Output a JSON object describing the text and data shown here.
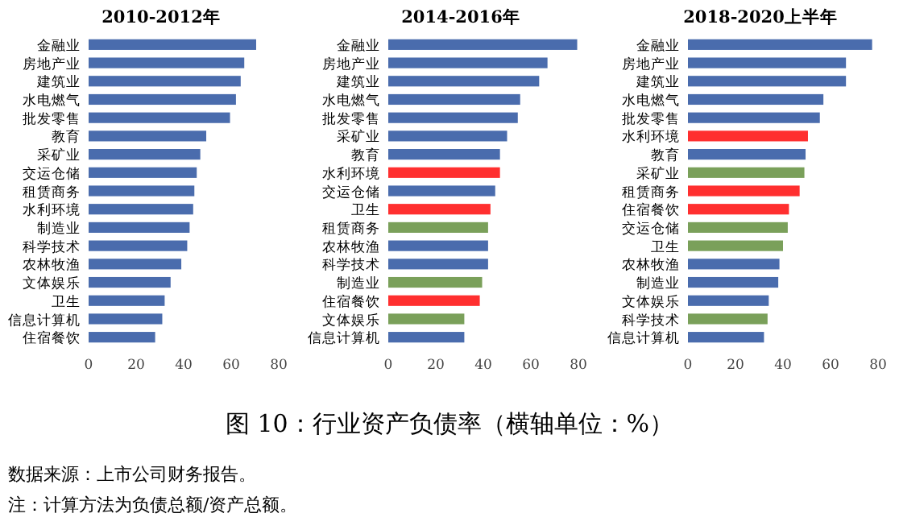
{
  "chart_data": [
    {
      "type": "bar",
      "orientation": "horizontal",
      "title": "2010-2012年",
      "categories": [
        "金融业",
        "房地产业",
        "建筑业",
        "水电燃气",
        "批发零售",
        "教育",
        "采矿业",
        "交运仓储",
        "租赁商务",
        "水利环境",
        "制造业",
        "科学技术",
        "农林牧渔",
        "文体娱乐",
        "卫生",
        "信息计算机",
        "住宿餐饮"
      ],
      "values": [
        70.5,
        65.5,
        64,
        62,
        59.5,
        49.5,
        47,
        45.5,
        44.5,
        44,
        42.5,
        41.5,
        39,
        34.5,
        32,
        31,
        28
      ],
      "colors": [
        "#4a6cad",
        "#4a6cad",
        "#4a6cad",
        "#4a6cad",
        "#4a6cad",
        "#4a6cad",
        "#4a6cad",
        "#4a6cad",
        "#4a6cad",
        "#4a6cad",
        "#4a6cad",
        "#4a6cad",
        "#4a6cad",
        "#4a6cad",
        "#4a6cad",
        "#4a6cad",
        "#4a6cad"
      ],
      "xlim": [
        0,
        80
      ],
      "xticks": [
        0,
        20,
        40,
        60,
        80
      ],
      "grid": false,
      "annotations": [
        "图 10：行业资产负债率（横轴单位：%）",
        "数据来源：上市公司财务报告。",
        "注：计算方法为负债总额/资产总额。"
      ]
    },
    {
      "type": "bar",
      "orientation": "horizontal",
      "title": "2014-2016年",
      "categories": [
        "金融业",
        "房地产业",
        "建筑业",
        "水电燃气",
        "批发零售",
        "采矿业",
        "教育",
        "水利环境",
        "交运仓储",
        "卫生",
        "租赁商务",
        "农林牧渔",
        "科学技术",
        "制造业",
        "住宿餐饮",
        "文体娱乐",
        "信息计算机"
      ],
      "values": [
        79.5,
        67,
        63.5,
        55.5,
        54.5,
        50,
        47,
        47,
        45,
        43,
        42,
        42,
        42,
        39.5,
        38.5,
        32,
        32
      ],
      "colors": [
        "#4a6cad",
        "#4a6cad",
        "#4a6cad",
        "#4a6cad",
        "#4a6cad",
        "#4a6cad",
        "#4a6cad",
        "#ff2f2f",
        "#4a6cad",
        "#ff2f2f",
        "#7aa05a",
        "#4a6cad",
        "#4a6cad",
        "#7aa05a",
        "#ff2f2f",
        "#7aa05a",
        "#4a6cad"
      ],
      "xlim": [
        0,
        80
      ],
      "xticks": [
        0,
        20,
        40,
        60,
        80
      ],
      "grid": false
    },
    {
      "type": "bar",
      "orientation": "horizontal",
      "title": "2018-2020上半年",
      "categories": [
        "金融业",
        "房地产业",
        "建筑业",
        "水电燃气",
        "批发零售",
        "水利环境",
        "教育",
        "采矿业",
        "租赁商务",
        "住宿餐饮",
        "交运仓储",
        "卫生",
        "农林牧渔",
        "制造业",
        "文体娱乐",
        "科学技术",
        "信息计算机"
      ],
      "values": [
        77.5,
        66.5,
        66.5,
        57,
        55.5,
        50.5,
        49.5,
        49,
        47,
        42.5,
        42,
        40,
        38.5,
        38,
        34,
        33.5,
        32
      ],
      "colors": [
        "#4a6cad",
        "#4a6cad",
        "#4a6cad",
        "#4a6cad",
        "#4a6cad",
        "#ff2f2f",
        "#4a6cad",
        "#7aa05a",
        "#ff2f2f",
        "#ff2f2f",
        "#7aa05a",
        "#7aa05a",
        "#4a6cad",
        "#4a6cad",
        "#4a6cad",
        "#7aa05a",
        "#4a6cad"
      ],
      "xlim": [
        0,
        80
      ],
      "xticks": [
        0,
        20,
        40,
        60,
        80
      ],
      "grid": false
    }
  ]
}
